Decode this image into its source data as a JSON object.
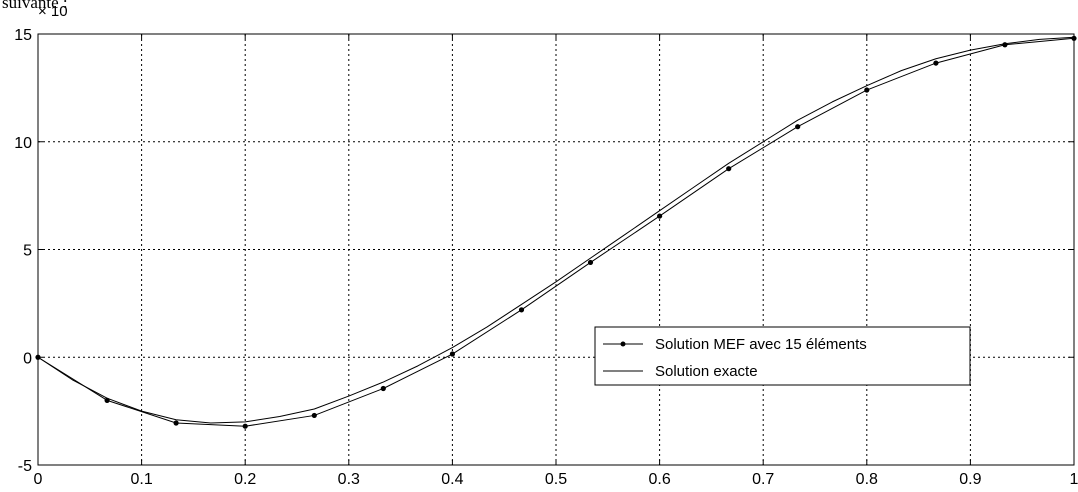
{
  "page_text": "suivante :",
  "chart_data": {
    "type": "line",
    "title": "",
    "xlabel": "",
    "ylabel": "",
    "y_exponent_label": "× 10",
    "xlim": [
      0,
      1
    ],
    "ylim": [
      -5,
      15
    ],
    "x_ticks": [
      "0",
      "0.1",
      "0.2",
      "0.3",
      "0.4",
      "0.5",
      "0.6",
      "0.7",
      "0.8",
      "0.9",
      "1"
    ],
    "y_ticks": [
      "15",
      "10",
      "5",
      "0",
      "-5"
    ],
    "grid": true,
    "legend_position": "center-right",
    "series": [
      {
        "name": "Solution MEF avec 15 éléments",
        "marker": "dot",
        "color": "#000000",
        "x": [
          0,
          0.0667,
          0.1333,
          0.2,
          0.2667,
          0.3333,
          0.4,
          0.4667,
          0.5333,
          0.6,
          0.6667,
          0.7333,
          0.8,
          0.8667,
          0.9333,
          1.0
        ],
        "y": [
          0,
          -2.0,
          -3.05,
          -3.2,
          -2.7,
          -1.45,
          0.15,
          2.2,
          4.4,
          6.55,
          8.75,
          10.7,
          12.4,
          13.65,
          14.5,
          14.8
        ]
      },
      {
        "name": "Solution exacte",
        "marker": "none",
        "color": "#000000",
        "x": [
          0,
          0.0333,
          0.0667,
          0.1,
          0.1333,
          0.1667,
          0.2,
          0.2333,
          0.2667,
          0.3,
          0.3333,
          0.3667,
          0.4,
          0.4333,
          0.4667,
          0.5,
          0.5333,
          0.5667,
          0.6,
          0.6333,
          0.6667,
          0.7,
          0.7333,
          0.7667,
          0.8,
          0.8333,
          0.8667,
          0.9,
          0.9333,
          0.9667,
          1.0
        ],
        "y": [
          0,
          -1.05,
          -1.9,
          -2.5,
          -2.9,
          -3.05,
          -3.0,
          -2.75,
          -2.4,
          -1.8,
          -1.15,
          -0.4,
          0.45,
          1.4,
          2.45,
          3.5,
          4.6,
          5.7,
          6.8,
          7.9,
          9.0,
          10.0,
          11.0,
          11.85,
          12.6,
          13.3,
          13.85,
          14.25,
          14.55,
          14.75,
          14.85
        ]
      }
    ]
  }
}
